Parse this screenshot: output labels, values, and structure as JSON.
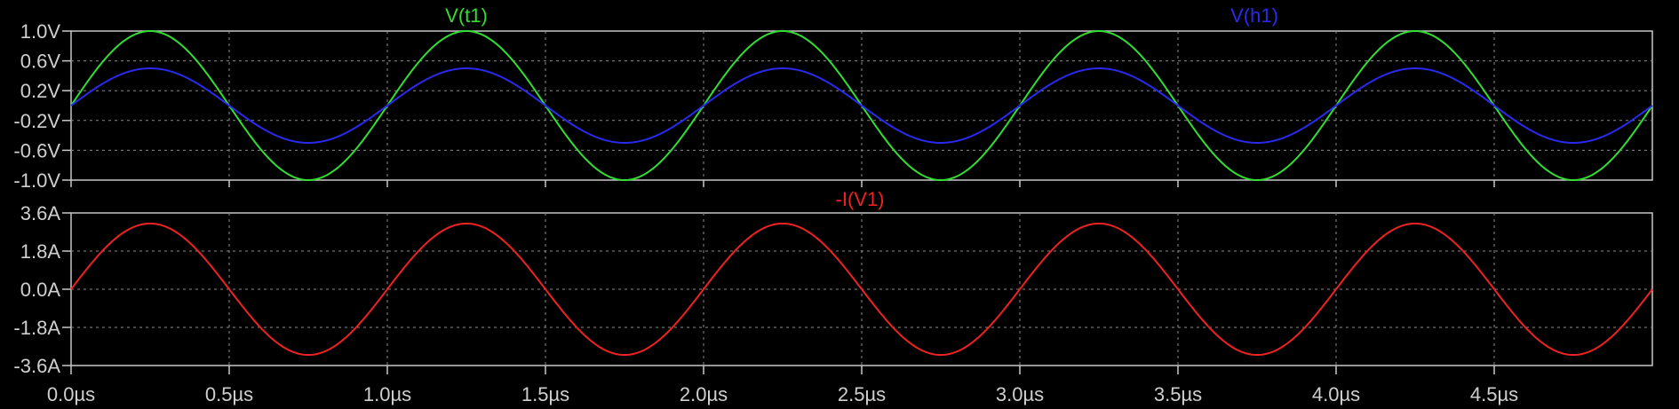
{
  "chart_data": [
    {
      "type": "line",
      "pane": "top",
      "xlabel": "",
      "ylabel": "",
      "xlim": [
        0,
        5.0
      ],
      "ylim": [
        -1.0,
        1.0
      ],
      "x_ticks": [
        "0.0µs",
        "0.5µs",
        "1.0µs",
        "1.5µs",
        "2.0µs",
        "2.5µs",
        "3.0µs",
        "3.5µs",
        "4.0µs",
        "4.5µs"
      ],
      "x_tick_values": [
        0,
        0.5,
        1.0,
        1.5,
        2.0,
        2.5,
        3.0,
        3.5,
        4.0,
        4.5
      ],
      "y_ticks": [
        "1.0V",
        "0.6V",
        "0.2V",
        "-0.2V",
        "-0.6V",
        "-1.0V"
      ],
      "y_tick_values": [
        1.0,
        0.6,
        0.2,
        -0.2,
        -0.6,
        -1.0
      ],
      "grid": true,
      "x_unit": "µs",
      "series": [
        {
          "name": "V(t1)",
          "color": "#33dd33",
          "shape": "sine",
          "amplitude": 1.0,
          "period": 1.0,
          "phase": 0,
          "x_range": [
            0,
            5.0
          ]
        },
        {
          "name": "V(h1)",
          "color": "#2a2aee",
          "shape": "sine",
          "amplitude": 0.5,
          "period": 1.0,
          "phase": 0,
          "x_range": [
            0,
            5.0
          ]
        }
      ]
    },
    {
      "type": "line",
      "pane": "bottom",
      "xlabel": "",
      "ylabel": "",
      "xlim": [
        0,
        5.0
      ],
      "ylim": [
        -3.6,
        3.6
      ],
      "y_ticks": [
        "3.6A",
        "1.8A",
        "0.0A",
        "-1.8A",
        "-3.6A"
      ],
      "y_tick_values": [
        3.6,
        1.8,
        0.0,
        -1.8,
        -3.6
      ],
      "grid": true,
      "series": [
        {
          "name": "-I(V1)",
          "color": "#ee2222",
          "shape": "sine",
          "amplitude": 3.1,
          "period": 1.0,
          "phase": 0,
          "x_range": [
            0,
            5.0
          ]
        }
      ]
    }
  ]
}
